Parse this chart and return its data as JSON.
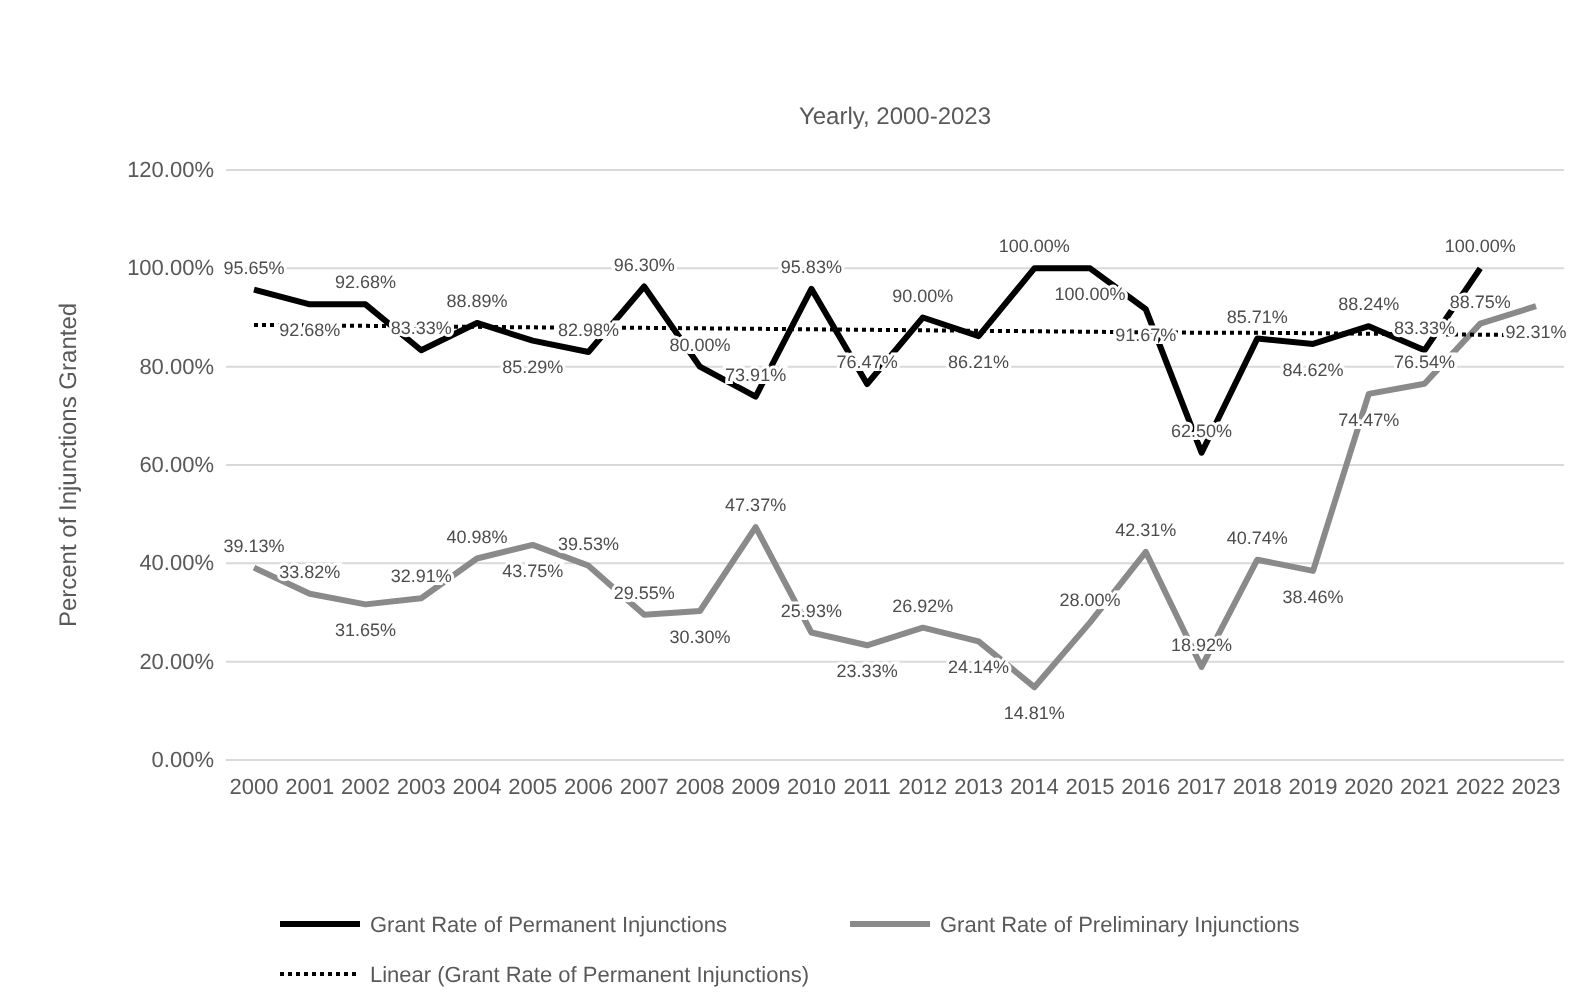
{
  "chart_data": {
    "type": "line",
    "title": "Yearly, 2000-2023",
    "ylabel": "Percent of Injunctions Granted",
    "categories": [
      "2000",
      "2001",
      "2002",
      "2003",
      "2004",
      "2005",
      "2006",
      "2007",
      "2008",
      "2009",
      "2010",
      "2011",
      "2012",
      "2013",
      "2014",
      "2015",
      "2016",
      "2017",
      "2018",
      "2019",
      "2020",
      "2021",
      "2022",
      "2023"
    ],
    "series": [
      {
        "name": "Grant Rate of Permanent Injunctions",
        "color": "#000000",
        "values": [
          95.65,
          92.68,
          92.68,
          83.33,
          88.89,
          85.29,
          82.98,
          96.3,
          80.0,
          73.91,
          95.83,
          76.47,
          90.0,
          86.21,
          100,
          100,
          91.67,
          62.5,
          85.71,
          84.62,
          88.24,
          83.33,
          100,
          null
        ],
        "value_labels": [
          "95.65%",
          "92.68%",
          "92.68%",
          "83.33%",
          "88.89%",
          "85.29%",
          "82.98%",
          "96.30%",
          "80.00%",
          "73.91%",
          "95.83%",
          "76.47%",
          "90.00%",
          "86.21%",
          "100.00%",
          "100.00%",
          "91.67%",
          "62.50%",
          "85.71%",
          "84.62%",
          "88.24%",
          "83.33%",
          "100.00%",
          null
        ]
      },
      {
        "name": "Grant Rate of Preliminary Injunctions",
        "color": "#8a8a8a",
        "values": [
          39.13,
          33.82,
          31.65,
          32.91,
          40.98,
          43.75,
          39.53,
          29.55,
          30.3,
          47.37,
          25.93,
          23.33,
          26.92,
          24.14,
          14.81,
          28.0,
          42.31,
          18.92,
          40.74,
          38.46,
          74.47,
          76.54,
          88.75,
          92.31
        ],
        "value_labels": [
          "39.13%",
          "33.82%",
          "31.65%",
          "32.91%",
          "40.98%",
          "43.75%",
          "39.53%",
          "29.55%",
          "30.30%",
          "47.37%",
          "25.93%",
          "23.33%",
          "26.92%",
          "24.14%",
          "14.81%",
          "28.00%",
          "42.31%",
          "18.92%",
          "40.74%",
          "38.46%",
          "74.47%",
          "76.54%",
          "88.75%",
          "92.31%"
        ]
      },
      {
        "name": "Linear (Grant Rate of Permanent Injunctions)",
        "color": "#000000",
        "line_style": "dotted",
        "values": [
          88.5,
          88.4,
          88.3,
          88.2,
          88.1,
          88.0,
          87.9,
          87.9,
          87.8,
          87.7,
          87.6,
          87.5,
          87.4,
          87.3,
          87.2,
          87.1,
          87.0,
          86.9,
          86.9,
          86.8,
          86.7,
          86.6,
          86.5,
          86.4
        ]
      }
    ],
    "ylim": [
      0,
      120
    ],
    "yticks": [
      {
        "value": 0,
        "label": "0.00%"
      },
      {
        "value": 20,
        "label": "20.00%"
      },
      {
        "value": 40,
        "label": "40.00%"
      },
      {
        "value": 60,
        "label": "60.00%"
      },
      {
        "value": 80,
        "label": "80.00%"
      },
      {
        "value": 100,
        "label": "100.00%"
      },
      {
        "value": 120,
        "label": "120.00%"
      }
    ],
    "grid": "y",
    "legend": "bottom",
    "line_style": "solid"
  }
}
